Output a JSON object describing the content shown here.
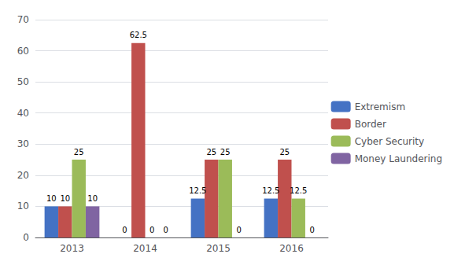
{
  "chart_data": {
    "type": "bar",
    "categories": [
      "2013",
      "2014",
      "2015",
      "2016"
    ],
    "series": [
      {
        "name": "Extremism",
        "color": "#4472C4",
        "values": [
          10,
          0,
          12.5,
          12.5
        ]
      },
      {
        "name": "Border",
        "color": "#C0504D",
        "values": [
          10,
          62.5,
          25,
          25
        ]
      },
      {
        "name": "Cyber Security",
        "color": "#9BBB59",
        "values": [
          25,
          0,
          25,
          12.5
        ]
      },
      {
        "name": "Money Laundering",
        "color": "#8064A2",
        "values": [
          10,
          0,
          0,
          0
        ]
      }
    ],
    "ylim": [
      0,
      70
    ],
    "yticks": [
      0,
      10,
      20,
      30,
      40,
      50,
      60,
      70
    ],
    "grid": true,
    "legend": "right",
    "data_labels": true
  }
}
